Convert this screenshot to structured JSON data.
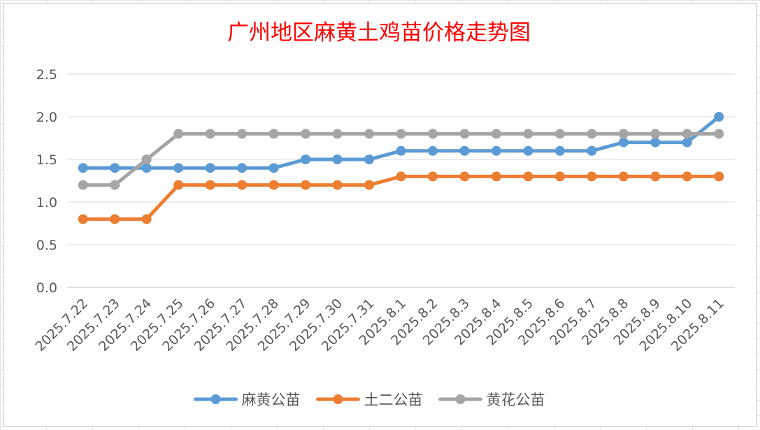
{
  "chart_data": {
    "type": "line",
    "title": "广州地区麻黄土鸡苗价格走势图",
    "xlabel": "",
    "ylabel": "",
    "ylim": [
      0,
      2.5
    ],
    "yticks": [
      "0.0",
      "0.5",
      "1.0",
      "1.5",
      "2.0",
      "2.5"
    ],
    "grid": true,
    "legend": "bottom",
    "categories": [
      "2025.7.22",
      "2025.7.23",
      "2025.7.24",
      "2025.7.25",
      "2025.7.26",
      "2025.7.27",
      "2025.7.28",
      "2025.7.29",
      "2025.7.30",
      "2025.7.31",
      "2025.8.1",
      "2025.8.2",
      "2025.8.3",
      "2025.8.4",
      "2025.8.5",
      "2025.8.6",
      "2025.8.7",
      "2025.8.8",
      "2025.8.9",
      "2025.8.10",
      "2025.8.11"
    ],
    "series": [
      {
        "name": "麻黄公苗",
        "color": "#5b9bd5",
        "values": [
          1.4,
          1.4,
          1.4,
          1.4,
          1.4,
          1.4,
          1.4,
          1.5,
          1.5,
          1.5,
          1.6,
          1.6,
          1.6,
          1.6,
          1.6,
          1.6,
          1.6,
          1.7,
          1.7,
          1.7,
          2.0
        ]
      },
      {
        "name": "土二公苗",
        "color": "#ed7d31",
        "values": [
          0.8,
          0.8,
          0.8,
          1.2,
          1.2,
          1.2,
          1.2,
          1.2,
          1.2,
          1.2,
          1.3,
          1.3,
          1.3,
          1.3,
          1.3,
          1.3,
          1.3,
          1.3,
          1.3,
          1.3,
          1.3
        ]
      },
      {
        "name": "黄花公苗",
        "color": "#a5a5a5",
        "values": [
          1.2,
          1.2,
          1.5,
          1.8,
          1.8,
          1.8,
          1.8,
          1.8,
          1.8,
          1.8,
          1.8,
          1.8,
          1.8,
          1.8,
          1.8,
          1.8,
          1.8,
          1.8,
          1.8,
          1.8,
          1.8
        ]
      }
    ]
  }
}
